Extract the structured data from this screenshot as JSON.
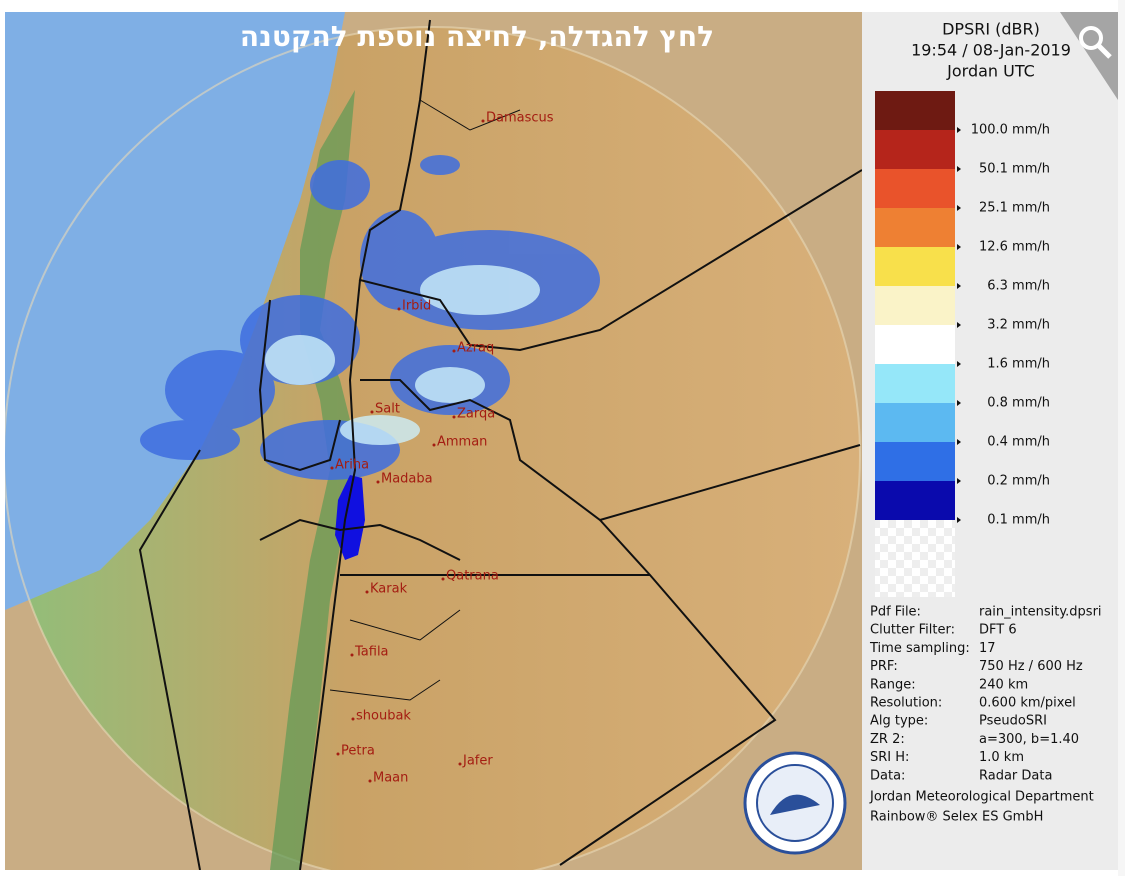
{
  "banner": "לחץ להגדלה, לחיצה נוספת להקטנה",
  "legend": {
    "title": [
      "DPSRI (dBR)",
      "19:54 / 08-Jan-2019",
      "Jordan UTC"
    ],
    "levels": [
      {
        "label": "100.0 mm/h",
        "color": "#6e1a12"
      },
      {
        "label": "50.1 mm/h",
        "color": "#b5251b"
      },
      {
        "label": "25.1 mm/h",
        "color": "#e9532b"
      },
      {
        "label": "12.6 mm/h",
        "color": "#ee8033"
      },
      {
        "label": "6.3 mm/h",
        "color": "#f8e04b"
      },
      {
        "label": "3.2 mm/h",
        "color": "#faf3c8"
      },
      {
        "label": "1.6 mm/h",
        "color": "#ffffff"
      },
      {
        "label": "0.8 mm/h",
        "color": "#95e7f9"
      },
      {
        "label": "0.4 mm/h",
        "color": "#5cb9f1"
      },
      {
        "label": "0.2 mm/h",
        "color": "#2f6fe6"
      },
      {
        "label": "0.1 mm/h",
        "color": "#0a0aad"
      }
    ]
  },
  "cities": [
    "Damascus",
    "Irbid",
    "Azraq",
    "Salt",
    "Zarqa",
    "Amman",
    "Ariha",
    "Madaba",
    "Qatrana",
    "Karak",
    "Tafila",
    "shoubak",
    "Petra",
    "Jafer",
    "Maan"
  ],
  "info": [
    [
      "Pdf File:",
      "rain_intensity.dpsri"
    ],
    [
      "Clutter Filter:",
      "DFT 6"
    ],
    [
      "Time sampling:",
      "17"
    ],
    [
      "PRF:",
      "750 Hz / 600 Hz"
    ],
    [
      "Range:",
      "240 km"
    ],
    [
      "Resolution:",
      "0.600 km/pixel"
    ],
    [
      "Alg type:",
      "PseudoSRI"
    ],
    [
      "ZR 2:",
      "a=300, b=1.40"
    ],
    [
      "SRI H:",
      "1.0 km"
    ],
    [
      "Data:",
      "Radar Data"
    ]
  ],
  "credits": [
    "Jordan Meteorological Department",
    "Rainbow® Selex ES GmbH"
  ]
}
